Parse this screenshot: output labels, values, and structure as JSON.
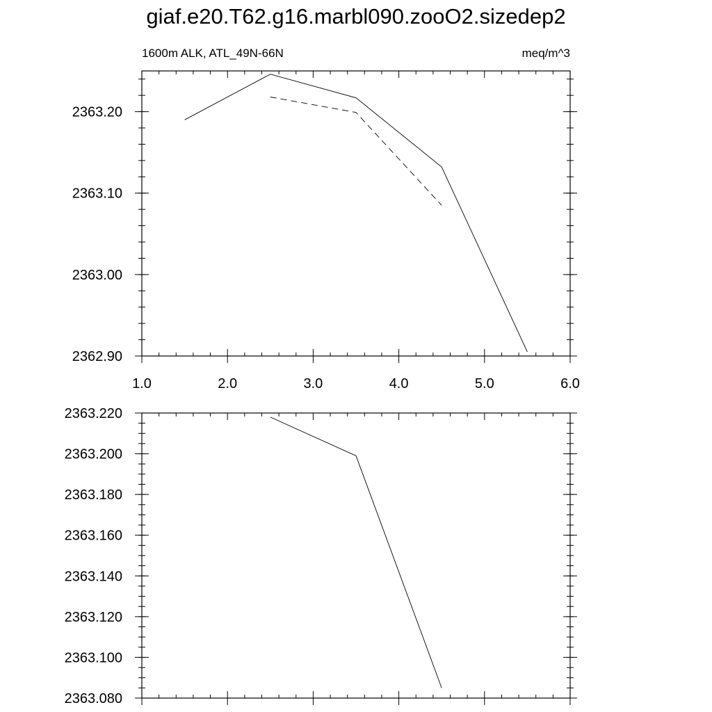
{
  "title": "giaf.e20.T62.g16.marbl090.zooO2.sizedep2",
  "chart_data": [
    {
      "type": "line",
      "subtitle_left": "1600m ALK, ATL_49N-66N",
      "subtitle_right": "meq/m^3",
      "xlim": [
        1.0,
        6.0
      ],
      "ylim": [
        2362.9,
        2363.25
      ],
      "x_ticks": [
        "1.0",
        "2.0",
        "3.0",
        "4.0",
        "5.0",
        "6.0"
      ],
      "y_ticks": [
        "2362.90",
        "2363.00",
        "2363.10",
        "2363.20"
      ],
      "grid": false,
      "series": [
        {
          "style": "solid",
          "color": "#000000",
          "x": [
            1.5,
            2.5,
            3.5,
            4.5,
            5.5
          ],
          "y": [
            2363.19,
            2363.246,
            2363.217,
            2363.132,
            2362.905
          ]
        },
        {
          "style": "dashed",
          "color": "#000000",
          "x": [
            2.5,
            3.5,
            4.5
          ],
          "y": [
            2363.218,
            2363.199,
            2363.085
          ]
        }
      ]
    },
    {
      "type": "line",
      "xlim": [
        1.0,
        6.0
      ],
      "ylim": [
        2363.08,
        2363.22
      ],
      "y_ticks": [
        "2363.080",
        "2363.100",
        "2363.120",
        "2363.140",
        "2363.160",
        "2363.180",
        "2363.200",
        "2363.220"
      ],
      "grid": false,
      "series": [
        {
          "style": "solid",
          "color": "#000000",
          "x": [
            2.5,
            3.5,
            4.5
          ],
          "y": [
            2363.218,
            2363.199,
            2363.085
          ]
        }
      ]
    }
  ]
}
